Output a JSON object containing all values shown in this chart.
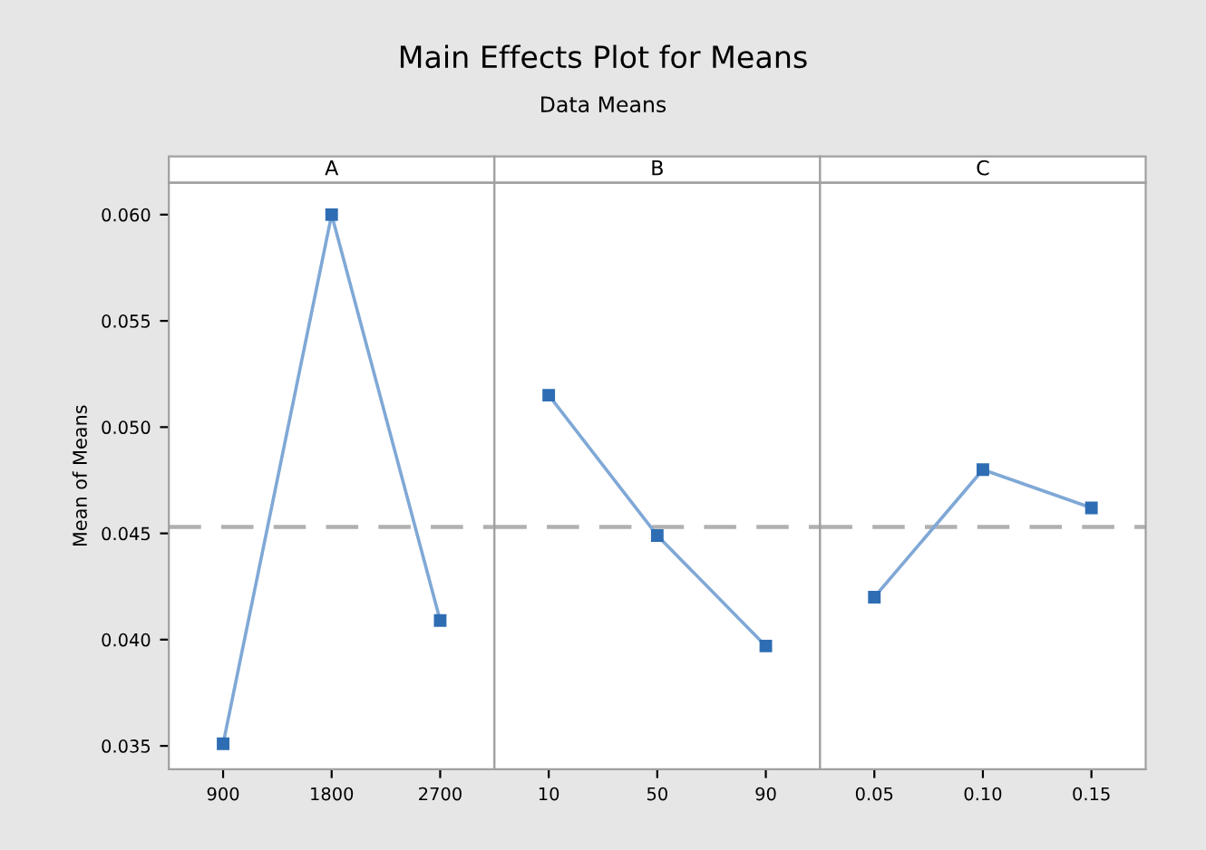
{
  "chart_data": [
    {
      "type": "other",
      "title": "Main Effects Plot for Means",
      "subtitle": "Data Means"
    },
    {
      "type": "line",
      "title": "A",
      "ylabel": "Mean of Means",
      "categories": [
        "900",
        "1800",
        "2700"
      ],
      "series": [
        {
          "color": "#2e6db4",
          "values": [
            0.0351,
            0.06,
            0.0409
          ]
        }
      ],
      "ylim": [
        0.0339,
        0.0615
      ],
      "yticks": [
        {
          "value": 0.035,
          "label": "0.035"
        },
        {
          "value": 0.04,
          "label": "0.040"
        },
        {
          "value": 0.045,
          "label": "0.045"
        },
        {
          "value": 0.05,
          "label": "0.050"
        },
        {
          "value": 0.055,
          "label": "0.055"
        },
        {
          "value": 0.06,
          "label": "0.060"
        }
      ],
      "ref_lines": [
        {
          "axis": "y",
          "value": 0.0453,
          "color": "#b0b0b0",
          "line_style": "dashed"
        }
      ],
      "marker": "square",
      "grid": false
    },
    {
      "type": "line",
      "title": "B",
      "categories": [
        "10",
        "50",
        "90"
      ],
      "series": [
        {
          "color": "#2e6db4",
          "values": [
            0.0515,
            0.0449,
            0.0397
          ]
        }
      ],
      "ylim": [
        0.0339,
        0.0615
      ],
      "tick_labels": "x",
      "ref_lines": [
        {
          "axis": "y",
          "value": 0.0453,
          "color": "#b0b0b0",
          "line_style": "dashed"
        }
      ],
      "marker": "square",
      "grid": false
    },
    {
      "type": "line",
      "title": "C",
      "categories": [
        "0.05",
        "0.10",
        "0.15"
      ],
      "series": [
        {
          "color": "#2e6db4",
          "values": [
            0.042,
            0.048,
            0.0462
          ]
        }
      ],
      "ylim": [
        0.0339,
        0.0615
      ],
      "tick_labels": "x",
      "ref_lines": [
        {
          "axis": "y",
          "value": 0.0453,
          "color": "#b0b0b0",
          "line_style": "dashed"
        }
      ],
      "marker": "square",
      "grid": false
    }
  ]
}
